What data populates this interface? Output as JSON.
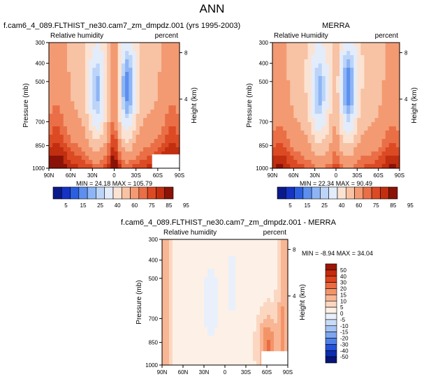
{
  "figure": {
    "title": "ANN"
  },
  "chart_data": [
    {
      "type": "heatmap",
      "title": "f.cam6_4_089.FLTHIST_ne30.cam7_zm_dmpdz.001 (yrs 1995-2003)",
      "subtitle_left": "Relative humidity",
      "subtitle_right": "percent",
      "xlabel": "",
      "ylabel": "Pressure (mb)",
      "ylabel_right": "Height (km)",
      "x_ticks": [
        "90N",
        "60N",
        "30N",
        "0",
        "30S",
        "60S",
        "90S"
      ],
      "y_ticks": [
        "300",
        "400",
        "500",
        "700",
        "850",
        "1000"
      ],
      "y_right_ticks": [
        "8",
        "4"
      ],
      "stats": "MIN = 24.18   MAX = 105.79"
    },
    {
      "type": "heatmap",
      "title": "MERRA",
      "subtitle_left": "Relative Humidity",
      "subtitle_right": "percent",
      "xlabel": "",
      "ylabel": "Pressure (mb)",
      "ylabel_right": "Height (km)",
      "x_ticks": [
        "90N",
        "60N",
        "30N",
        "0",
        "30S",
        "60S",
        "90S"
      ],
      "y_ticks": [
        "300",
        "400",
        "500",
        "700",
        "850",
        "1000"
      ],
      "y_right_ticks": [
        "8",
        "4"
      ],
      "stats": "MIN = 22.34   MAX = 90.49"
    },
    {
      "type": "heatmap",
      "title": "f.cam6_4_089.FLTHIST_ne30.cam7_zm_dmpdz.001 - MERRA",
      "subtitle_left": "Relative humidity",
      "subtitle_right": "percent",
      "xlabel": "",
      "ylabel": "Pressure (mb)",
      "ylabel_right": "Height (km)",
      "x_ticks": [
        "90N",
        "60N",
        "30N",
        "0",
        "30S",
        "60S",
        "90S"
      ],
      "y_ticks": [
        "300",
        "400",
        "500",
        "700",
        "850",
        "1000"
      ],
      "y_right_ticks": [
        "8",
        "4"
      ],
      "stats": "MIN = -8.94   MAX = 34.04"
    }
  ],
  "colorbar_top": {
    "labels": [
      "5",
      "15",
      "25",
      "40",
      "60",
      "75",
      "85",
      "95"
    ],
    "colors": [
      "#0a1a8a",
      "#1533c4",
      "#2b5fe0",
      "#5e8fef",
      "#8db5f5",
      "#bcd4f8",
      "#e3ecfb",
      "#fbe3d3",
      "#f8c2a4",
      "#f39a72",
      "#ea6f46",
      "#dc4a24",
      "#c12e10",
      "#8a1206"
    ]
  },
  "colorbar_diff": {
    "labels": [
      "50",
      "40",
      "30",
      "20",
      "15",
      "10",
      "5",
      "0",
      "-5",
      "-10",
      "-15",
      "-20",
      "-30",
      "-40",
      "-50"
    ],
    "colors": [
      "#9a1606",
      "#c52a0c",
      "#dc4420",
      "#eb6c42",
      "#f39468",
      "#f8b694",
      "#fbd7c2",
      "#fdf0e6",
      "#e9f0fb",
      "#c9dbf7",
      "#a5c3f3",
      "#7ea5ee",
      "#4f80e6",
      "#2452d8",
      "#0c2db0",
      "#05157a"
    ]
  }
}
